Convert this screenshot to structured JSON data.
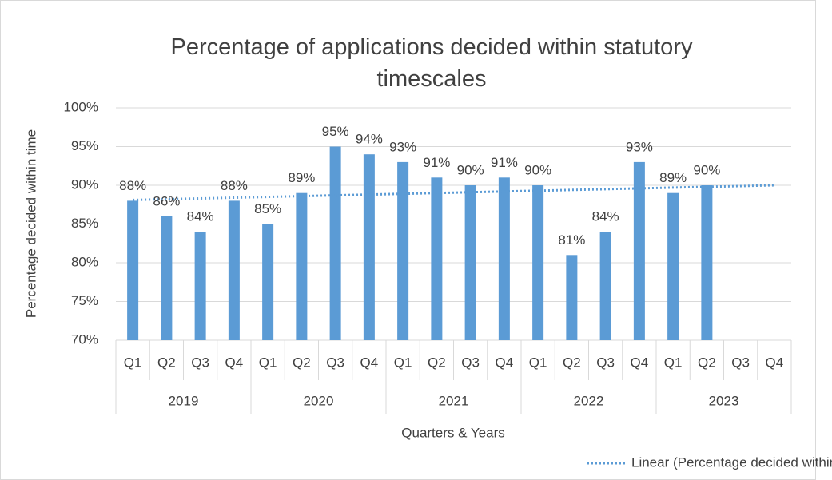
{
  "chart_data": {
    "type": "bar",
    "title": "Percentage of applications decided within statutory timescales",
    "y_label": "Percentage decided within time",
    "x_label": "Quarters & Years",
    "categories": [
      "Q1",
      "Q2",
      "Q3",
      "Q4",
      "Q1",
      "Q2",
      "Q3",
      "Q4",
      "Q1",
      "Q2",
      "Q3",
      "Q4",
      "Q1",
      "Q2",
      "Q3",
      "Q4",
      "Q1",
      "Q2",
      "Q3",
      "Q4"
    ],
    "groups": [
      "2019",
      "2020",
      "2021",
      "2022",
      "2023"
    ],
    "values": [
      88,
      86,
      84,
      88,
      85,
      89,
      95,
      94,
      93,
      91,
      90,
      91,
      90,
      81,
      84,
      93,
      89,
      90,
      null,
      null
    ],
    "value_labels": [
      "88%",
      "86%",
      "84%",
      "88%",
      "85%",
      "89%",
      "95%",
      "94%",
      "93%",
      "91%",
      "90%",
      "91%",
      "90%",
      "81%",
      "84%",
      "93%",
      "89%",
      "90%",
      null,
      null
    ],
    "color": "#5b9bd5",
    "ylim": [
      70,
      100
    ],
    "yticks": [
      {
        "value": 70,
        "label": "70%"
      },
      {
        "value": 75,
        "label": "75%"
      },
      {
        "value": 80,
        "label": "80%"
      },
      {
        "value": 85,
        "label": "85%"
      },
      {
        "value": 90,
        "label": "90%"
      },
      {
        "value": 95,
        "label": "95%"
      },
      {
        "value": 100,
        "label": "100%"
      }
    ],
    "grid": true,
    "trendline": {
      "name": "Linear (Percentage decided within time)",
      "values": [
        88.1,
        90.0
      ],
      "color": "#5b9bd5"
    },
    "legend": "bottom-right"
  }
}
